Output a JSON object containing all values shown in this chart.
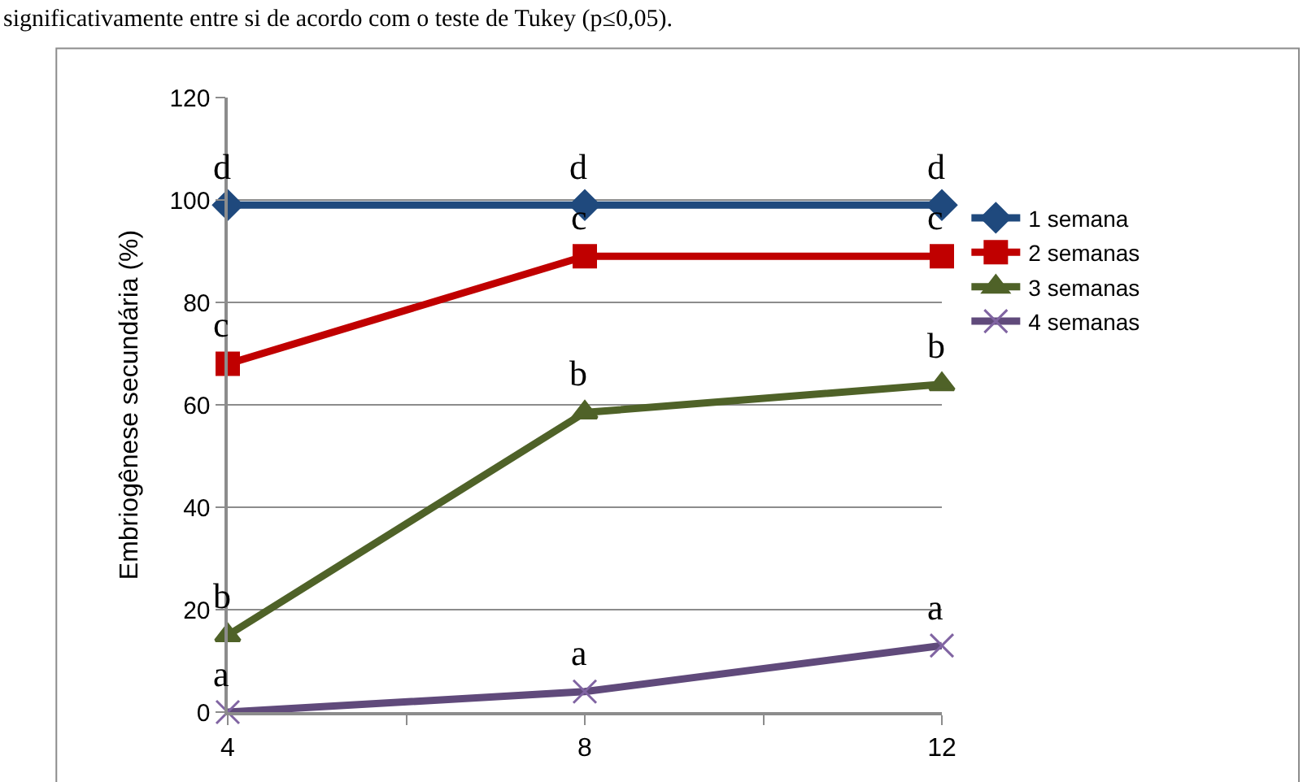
{
  "chart_data": {
    "type": "line",
    "ylabel": "Embriogênese secundária (%)",
    "x": [
      4,
      8,
      12
    ],
    "xlim": [
      4,
      12
    ],
    "xticks": [
      4,
      {
        "value": 6,
        "label": null
      },
      8,
      {
        "value": 10,
        "label": null
      },
      12
    ],
    "ylim": [
      0,
      120
    ],
    "yticks": [
      0,
      20,
      40,
      60,
      80,
      100,
      120
    ],
    "grid": "y",
    "legend": "right",
    "series": [
      {
        "name": "1 semana",
        "color": "#1f497d",
        "values": [
          99,
          99,
          99
        ],
        "marker": "diamond"
      },
      {
        "name": "2 semanas",
        "color": "#c00000",
        "values": [
          68,
          89,
          89
        ],
        "marker": "square"
      },
      {
        "name": "3 semanas",
        "color": "#4f6228",
        "values": [
          15,
          58.5,
          64
        ],
        "marker": "triangle"
      },
      {
        "name": "4 semanas",
        "color": "#604a7b",
        "values": [
          0,
          4,
          13
        ],
        "marker": "cross"
      }
    ],
    "annotations": [
      "significativamente entre si de acordo com o teste de Tukey (p≤0,05).",
      {
        "text": "d",
        "x": 4,
        "y": 99
      },
      {
        "text": "d",
        "x": 8,
        "y": 99
      },
      {
        "text": "d",
        "x": 12,
        "y": 99
      },
      {
        "text": "c",
        "x": 4,
        "y": 68
      },
      {
        "text": "c",
        "x": 8,
        "y": 89
      },
      {
        "text": "c",
        "x": 12,
        "y": 89
      },
      {
        "text": "b",
        "x": 4,
        "y": 15
      },
      {
        "text": "b",
        "x": 8,
        "y": 58.5
      },
      {
        "text": "b",
        "x": 12,
        "y": 64
      },
      {
        "text": "a",
        "x": 4,
        "y": 0
      },
      {
        "text": "a",
        "x": 8,
        "y": 4
      },
      {
        "text": "a",
        "x": 12,
        "y": 13
      }
    ]
  }
}
